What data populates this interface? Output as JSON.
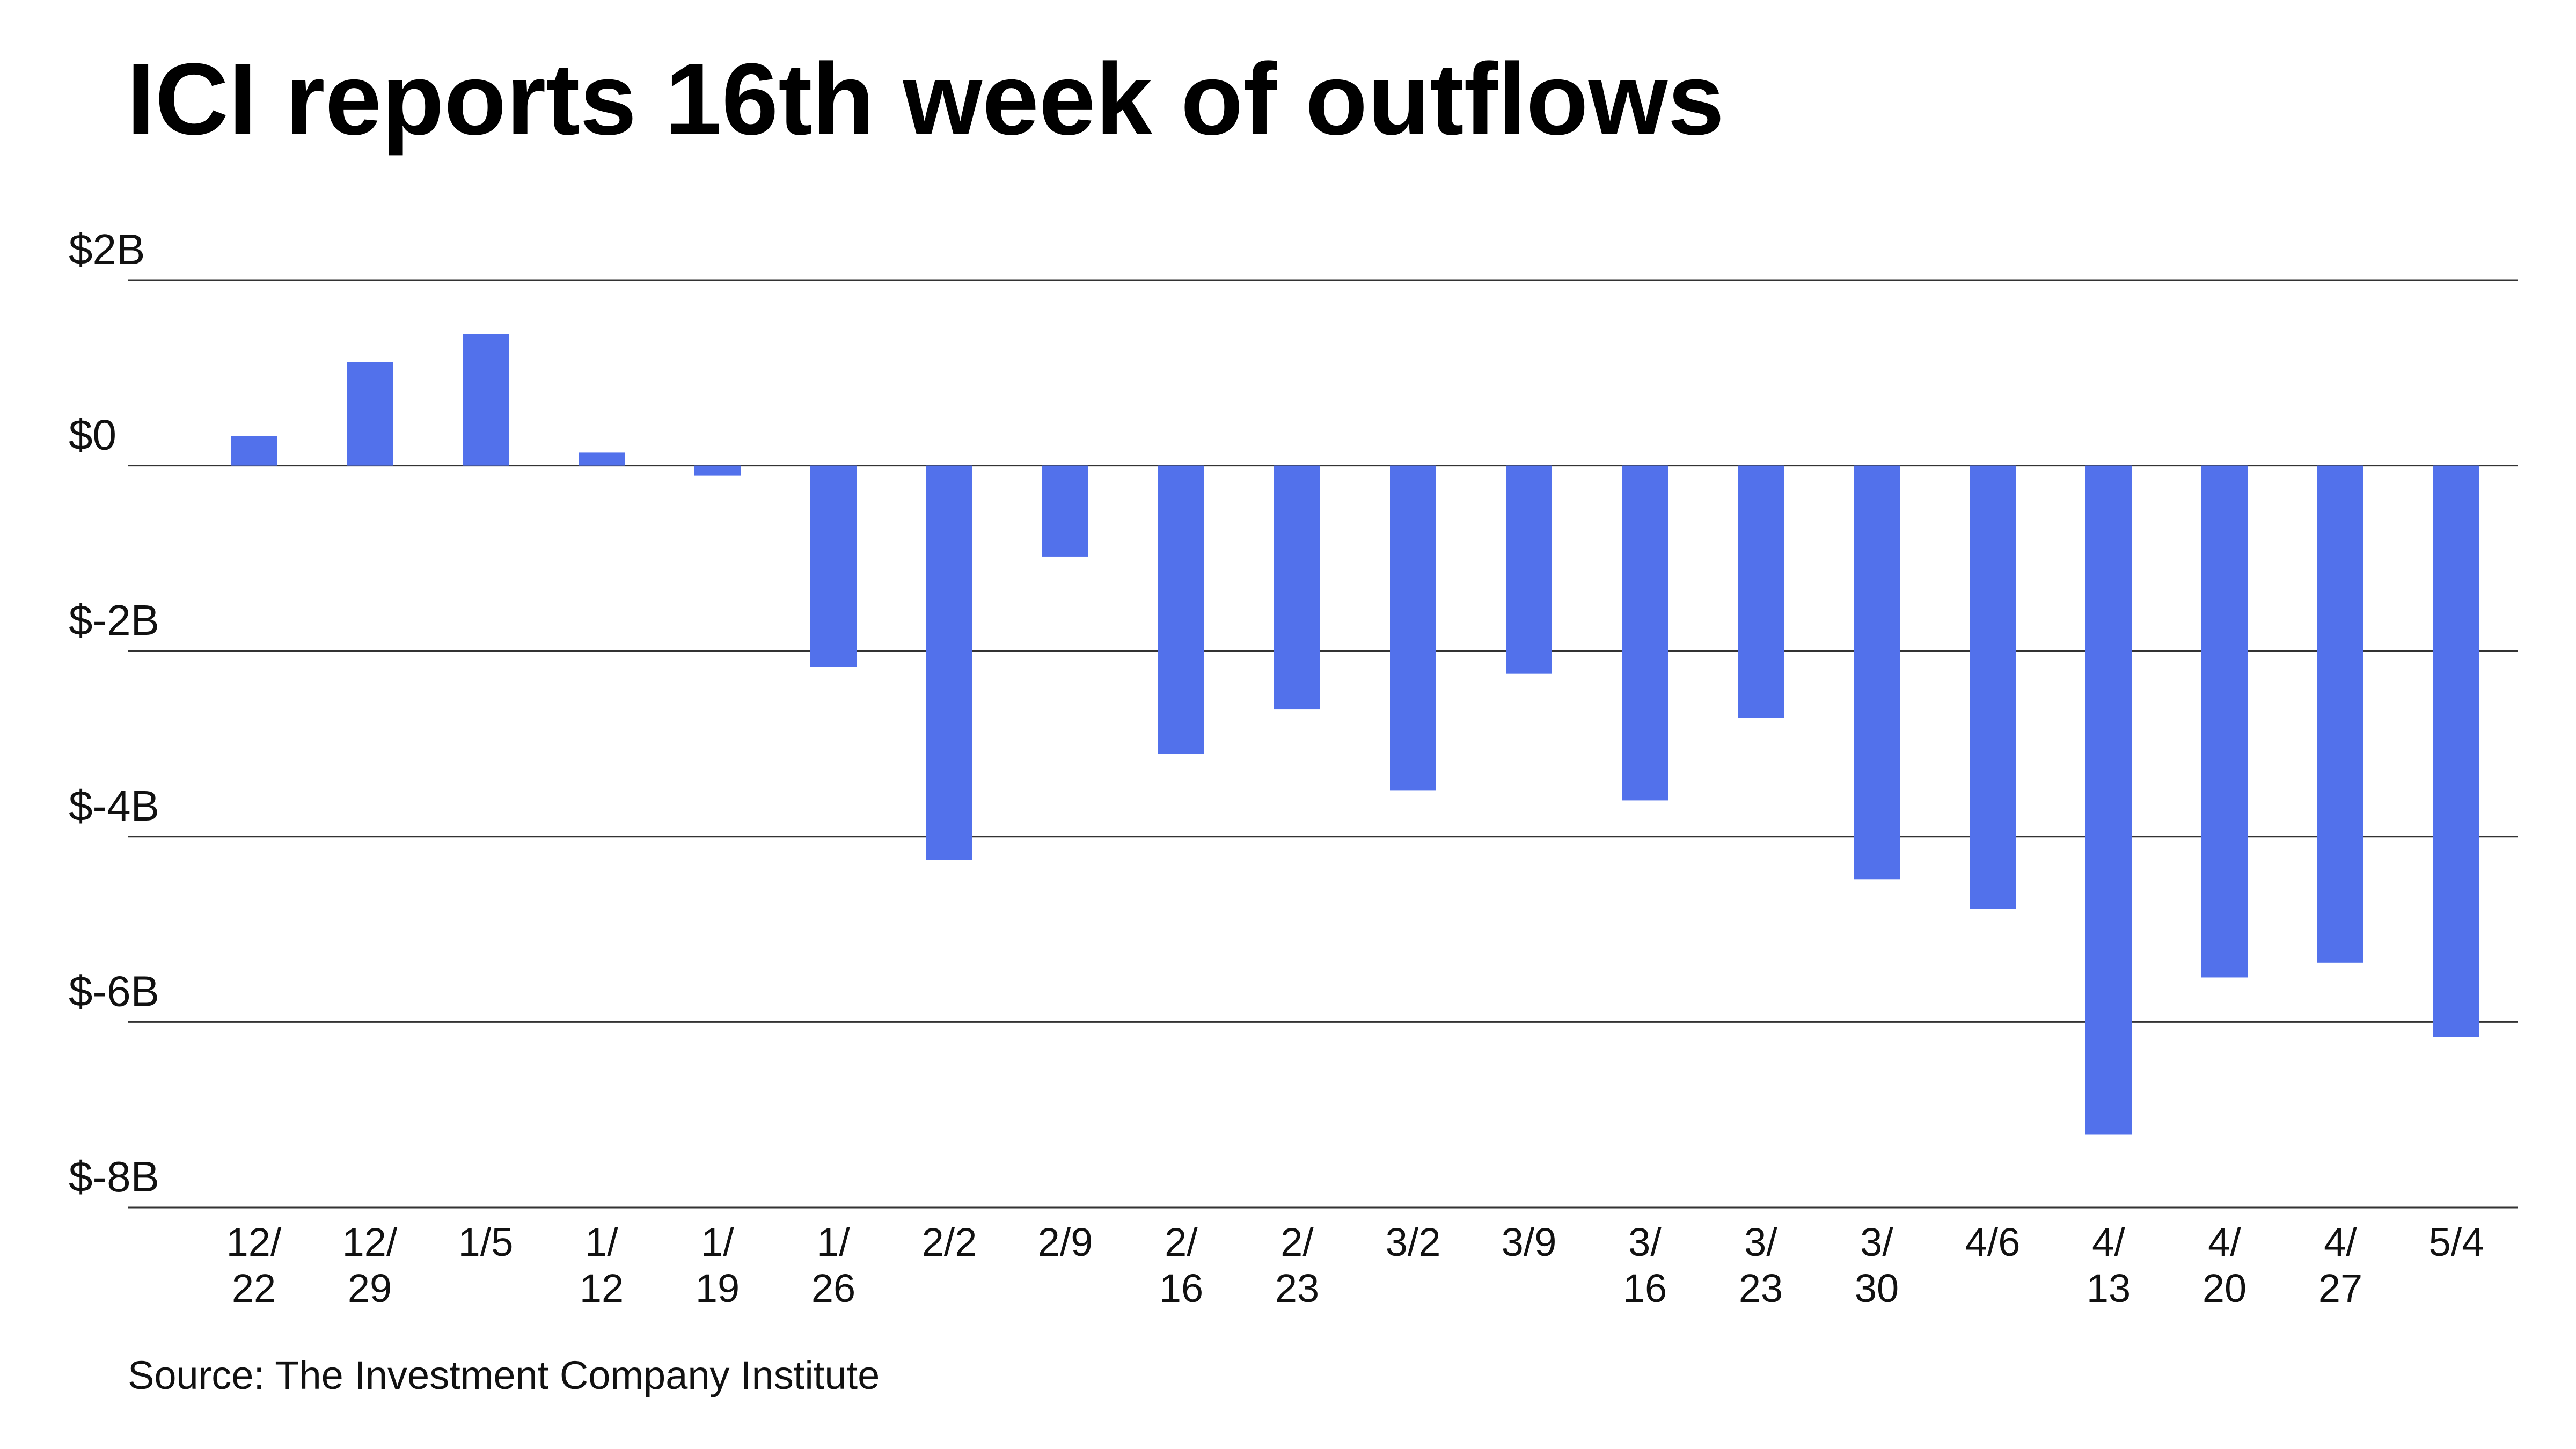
{
  "chart_data": {
    "type": "bar",
    "title": "ICI reports 16th week of outflows",
    "source": "Source: The Investment Company Institute",
    "categories": [
      "12/22",
      "12/29",
      "1/5",
      "1/12",
      "1/19",
      "1/26",
      "2/2",
      "2/9",
      "2/16",
      "2/23",
      "3/2",
      "3/9",
      "3/16",
      "3/23",
      "3/30",
      "4/6",
      "4/13",
      "4/20",
      "4/27",
      "5/4"
    ],
    "values": [
      0.32,
      1.12,
      1.42,
      0.14,
      -0.11,
      -2.17,
      -4.25,
      -0.98,
      -3.11,
      -2.63,
      -3.5,
      -2.24,
      -3.61,
      -2.72,
      -4.46,
      -4.78,
      -7.21,
      -5.52,
      -5.36,
      -6.16
    ],
    "color": "#5271eb",
    "ylim": [
      -8,
      2
    ],
    "yticks": [
      {
        "value": 2,
        "label": "$2B"
      },
      {
        "value": 0,
        "label": "$0"
      },
      {
        "value": -2,
        "label": "$-2B"
      },
      {
        "value": -4,
        "label": "$-4B"
      },
      {
        "value": -6,
        "label": "$-6B"
      },
      {
        "value": -8,
        "label": "$-8B"
      }
    ],
    "grid": true
  }
}
